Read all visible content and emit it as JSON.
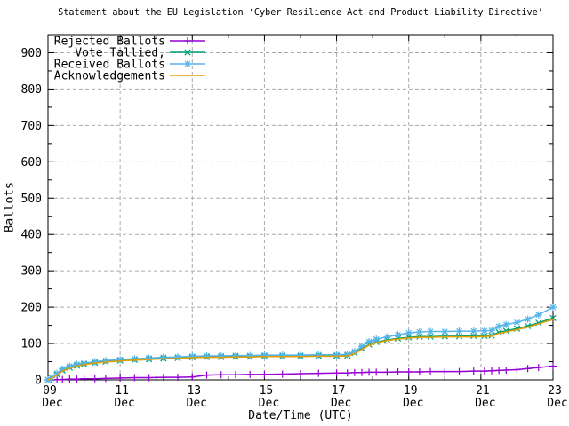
{
  "chart_data": {
    "type": "line",
    "title": "Statement about the EU Legislation ‘Cyber Resilience Act and Product Liability Directive’",
    "xlabel": "Date/Time (UTC)",
    "ylabel": "Ballots",
    "x_unit": "day of December (UTC)",
    "x_range": [
      9,
      23
    ],
    "y_range": [
      0,
      950
    ],
    "y_major_ticks": [
      0,
      100,
      200,
      300,
      400,
      500,
      600,
      700,
      800,
      900
    ],
    "y_minor_ticks": [
      50,
      150,
      250,
      350,
      450,
      550,
      650,
      750,
      850
    ],
    "x_major_ticks": [
      {
        "day": 9,
        "line1": "09",
        "line2": "Dec"
      },
      {
        "day": 11,
        "line1": "11",
        "line2": "Dec"
      },
      {
        "day": 13,
        "line1": "13",
        "line2": "Dec"
      },
      {
        "day": 15,
        "line1": "15",
        "line2": "Dec"
      },
      {
        "day": 17,
        "line1": "17",
        "line2": "Dec"
      },
      {
        "day": 19,
        "line1": "19",
        "line2": "Dec"
      },
      {
        "day": 21,
        "line1": "21",
        "line2": "Dec"
      },
      {
        "day": 23,
        "line1": "23",
        "line2": "Dec"
      }
    ],
    "x_minor_ticks": [
      10,
      12,
      14,
      16,
      18,
      20,
      22
    ],
    "grid": {
      "show": true,
      "color": "#aaaaaa",
      "style": "dashed"
    },
    "border_color": "#000000",
    "background": "#ffffff",
    "legend_position": "top-left-inside",
    "x_days": [
      9.0,
      9.1,
      9.25,
      9.4,
      9.6,
      9.8,
      10.0,
      10.3,
      10.6,
      11.0,
      11.4,
      11.8,
      12.2,
      12.6,
      13.0,
      13.4,
      13.8,
      14.2,
      14.6,
      15.0,
      15.5,
      16.0,
      16.5,
      17.0,
      17.3,
      17.5,
      17.7,
      17.9,
      18.1,
      18.4,
      18.7,
      19.0,
      19.3,
      19.6,
      20.0,
      20.4,
      20.8,
      21.1,
      21.3,
      21.5,
      21.7,
      22.0,
      22.3,
      22.6,
      23.0
    ],
    "series": [
      {
        "name": "Rejected Ballots",
        "color": "#9400d3",
        "marker": "plus",
        "values": [
          0,
          0,
          1,
          1,
          2,
          2,
          3,
          3,
          4,
          5,
          6,
          6,
          7,
          7,
          8,
          13,
          14,
          14,
          15,
          15,
          16,
          17,
          18,
          19,
          19,
          20,
          20,
          21,
          21,
          21,
          22,
          22,
          22,
          23,
          23,
          23,
          24,
          24,
          25,
          26,
          27,
          28,
          31,
          34,
          38
        ]
      },
      {
        "name": "   Vote Tallied,",
        "color": "#009e73",
        "marker": "cross",
        "values": [
          0,
          5,
          15,
          26,
          34,
          39,
          43,
          47,
          50,
          53,
          55,
          57,
          59,
          60,
          62,
          63,
          63,
          64,
          64,
          65,
          65,
          65,
          66,
          66,
          67,
          74,
          86,
          97,
          104,
          110,
          114,
          117,
          119,
          119,
          120,
          120,
          121,
          121,
          122,
          131,
          135,
          141,
          148,
          157,
          170
        ]
      },
      {
        "name": "Received Ballots",
        "color": "#56b4e9",
        "marker": "asterisk",
        "values": [
          0,
          6,
          18,
          30,
          38,
          43,
          46,
          50,
          53,
          56,
          58,
          60,
          62,
          63,
          65,
          66,
          66,
          67,
          67,
          68,
          68,
          68,
          69,
          69,
          70,
          78,
          92,
          105,
          112,
          118,
          124,
          129,
          132,
          133,
          133,
          134,
          134,
          135,
          136,
          147,
          152,
          158,
          167,
          179,
          200
        ]
      },
      {
        "name": "Acknowledgements",
        "color": "#e69f00",
        "marker": "none",
        "values": [
          0,
          4,
          13,
          24,
          32,
          38,
          42,
          46,
          49,
          52,
          54,
          56,
          58,
          59,
          61,
          62,
          62,
          63,
          63,
          64,
          64,
          64,
          65,
          65,
          66,
          72,
          84,
          95,
          102,
          108,
          112,
          115,
          117,
          117,
          118,
          118,
          118,
          119,
          120,
          128,
          132,
          138,
          145,
          154,
          166
        ]
      }
    ]
  }
}
